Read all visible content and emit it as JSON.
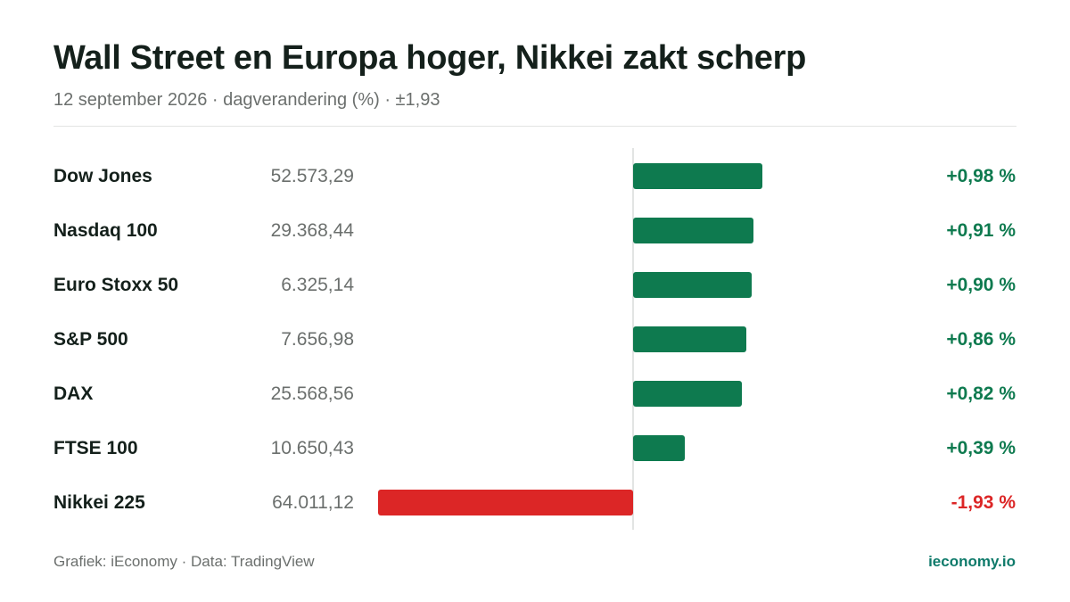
{
  "header": {
    "title": "Wall Street en Europa hoger, Nikkei zakt scherp",
    "subtitle": "12 september 2026 · dagverandering (%) · ±1,93"
  },
  "colors": {
    "positive": "#0e7a4f",
    "negative": "#dc2626",
    "brand": "#0e7a6a"
  },
  "chart_data": {
    "type": "bar",
    "orientation": "horizontal",
    "title": "Wall Street en Europa hoger, Nikkei zakt scherp",
    "subtitle": "12 september 2026 · dagverandering (%) · ±1,93",
    "xlim": [
      -1.93,
      1.93
    ],
    "grid": false,
    "categories": [
      "Dow Jones",
      "Nasdaq 100",
      "Euro Stoxx 50",
      "S&P 500",
      "DAX",
      "FTSE 100",
      "Nikkei 225"
    ],
    "rows": [
      {
        "name": "Dow Jones",
        "level": "52.573,29",
        "change": 0.98,
        "change_label": "+0,98 %"
      },
      {
        "name": "Nasdaq 100",
        "level": "29.368,44",
        "change": 0.91,
        "change_label": "+0,91 %"
      },
      {
        "name": "Euro Stoxx 50",
        "level": "6.325,14",
        "change": 0.9,
        "change_label": "+0,90 %"
      },
      {
        "name": "S&P 500",
        "level": "7.656,98",
        "change": 0.86,
        "change_label": "+0,86 %"
      },
      {
        "name": "DAX",
        "level": "25.568,56",
        "change": 0.82,
        "change_label": "+0,82 %"
      },
      {
        "name": "FTSE 100",
        "level": "10.650,43",
        "change": 0.39,
        "change_label": "+0,39 %"
      },
      {
        "name": "Nikkei 225",
        "level": "64.011,12",
        "change": -1.93,
        "change_label": "-1,93 %"
      }
    ]
  },
  "footer": {
    "credit": "Grafiek: iEconomy · Data: TradingView",
    "site": "ieconomy.io"
  }
}
